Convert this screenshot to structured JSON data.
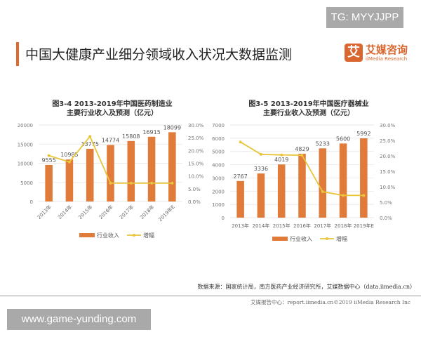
{
  "watermark_top": "TG: MYYJJPP",
  "watermark_bottom": "www.game-yunding.com",
  "header": {
    "title": "中国大健康产业细分领域收入状况大数据监测",
    "logo_glyph": "艾",
    "logo_cn": "艾媒咨询",
    "logo_en": "iiMedia Research",
    "accent_color": "#e06a2c"
  },
  "chart_data": [
    {
      "type": "bar+line",
      "title_line1": "图3-4 2013-2019年中国医药制造业",
      "title_line2": "主要行业收入及预测（亿元）",
      "categories": [
        "2013年",
        "2014年",
        "2015年",
        "2016年",
        "2017年",
        "2018年",
        "2019年E"
      ],
      "series": [
        {
          "name": "行业收入",
          "type": "bar",
          "axis": "left",
          "color": "#e07b39",
          "values": [
            9555,
            10985,
            13775,
            14774,
            15808,
            16915,
            18099
          ]
        },
        {
          "name": "增幅",
          "type": "line",
          "axis": "right",
          "color": "#e8c53a",
          "values": [
            18.0,
            15.5,
            25.5,
            7.2,
            7.2,
            7.2,
            7.2
          ]
        }
      ],
      "ylim_left": [
        0,
        20000
      ],
      "yticks_left": [
        "0",
        "5000",
        "10000",
        "15000",
        "20000"
      ],
      "ylim_right": [
        0,
        30
      ],
      "yticks_right": [
        "0.0%",
        "5.0%",
        "10.0%",
        "15.0%",
        "20.0%",
        "25.0%",
        "30.0%"
      ],
      "grid": true,
      "legend": "bottom"
    },
    {
      "type": "bar+line",
      "title_line1": "图3-5 2013-2019年中国医疗器械业",
      "title_line2": "主要行业收入及预测（亿元）",
      "categories": [
        "2013年",
        "2014年",
        "2015年",
        "2016年",
        "2017年",
        "2018年",
        "2019年E"
      ],
      "series": [
        {
          "name": "行业收入",
          "type": "bar",
          "axis": "left",
          "color": "#e07b39",
          "values": [
            2767,
            3336,
            4019,
            4829,
            5233,
            5600,
            5992
          ]
        },
        {
          "name": "增幅",
          "type": "line",
          "axis": "right",
          "color": "#e8c53a",
          "values": [
            24.5,
            20.5,
            20.3,
            20.2,
            8.4,
            7.2,
            7.2
          ]
        }
      ],
      "ylim_left": [
        0,
        7000
      ],
      "yticks_left": [
        "0",
        "1000",
        "2000",
        "3000",
        "4000",
        "5000",
        "6000",
        "7000"
      ],
      "ylim_right": [
        0,
        30
      ],
      "yticks_right": [
        "0.0%",
        "5.0%",
        "10.0%",
        "15.0%",
        "20.0%",
        "25.0%",
        "30.0%"
      ],
      "grid": true,
      "legend": "bottom"
    }
  ],
  "source": "数据来源：国家统计局，南方医药产业经济研究所，艾媒数据中心（data.iimedia.cn）",
  "footer": "艾媒报告中心：report.iimedia.cn©2019 iiMedia Research Inc"
}
